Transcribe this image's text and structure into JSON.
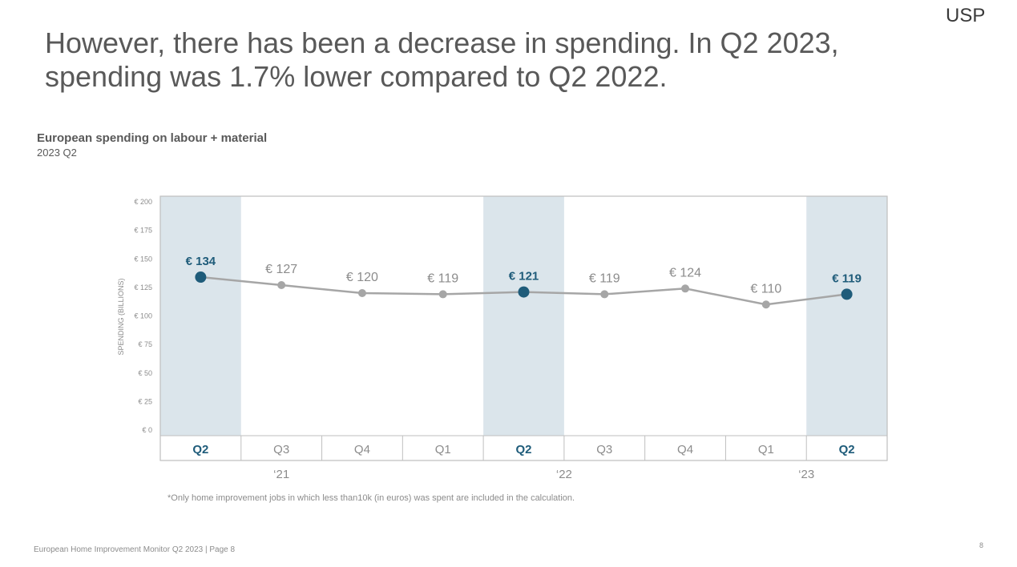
{
  "brand": {
    "logo_text": "USP"
  },
  "headline": {
    "line1": "However, there has been a decrease in spending. In Q2 2023,",
    "line2": "spending was 1.7% lower compared to Q2 2022."
  },
  "footnote": "*Only home improvement jobs in which less than10k (in euros) was spent are included in the calculation.",
  "footer": {
    "text": "European Home Improvement Monitor Q2 2023 | Page 8",
    "page_number": "8"
  },
  "colors": {
    "highlight": "#1f5c7a",
    "line": "#a6a6a6",
    "band": "#dbe5eb",
    "text_gray": "#8c8c8c"
  },
  "chart_data": {
    "type": "line",
    "title": "European spending on labour + material",
    "subtitle": "2023 Q2",
    "ylabel": "SPENDING (BILLIONS)",
    "ylim": [
      0,
      200
    ],
    "yticks": [
      0,
      25,
      50,
      75,
      100,
      125,
      150,
      175,
      200
    ],
    "ytick_labels": [
      "€ 0",
      "€ 25",
      "€ 50",
      "€ 75",
      "€ 100",
      "€ 125",
      "€ 150",
      "€ 175",
      "€ 200"
    ],
    "categories": [
      "Q2",
      "Q3",
      "Q4",
      "Q1",
      "Q2",
      "Q3",
      "Q4",
      "Q1",
      "Q2"
    ],
    "values": [
      134,
      127,
      120,
      119,
      121,
      119,
      124,
      110,
      119
    ],
    "value_labels": [
      "€ 134",
      "€ 127",
      "€ 120",
      "€ 119",
      "€ 121",
      "€ 119",
      "€ 124",
      "€ 110",
      "€ 119"
    ],
    "highlighted": [
      true,
      false,
      false,
      false,
      true,
      false,
      false,
      false,
      true
    ],
    "year_labels": [
      {
        "label": "‘21",
        "from": 0,
        "to": 2
      },
      {
        "label": "‘22",
        "from": 3,
        "to": 6
      },
      {
        "label": "‘23",
        "from": 7,
        "to": 8
      }
    ],
    "grid": false,
    "legend": "none"
  }
}
